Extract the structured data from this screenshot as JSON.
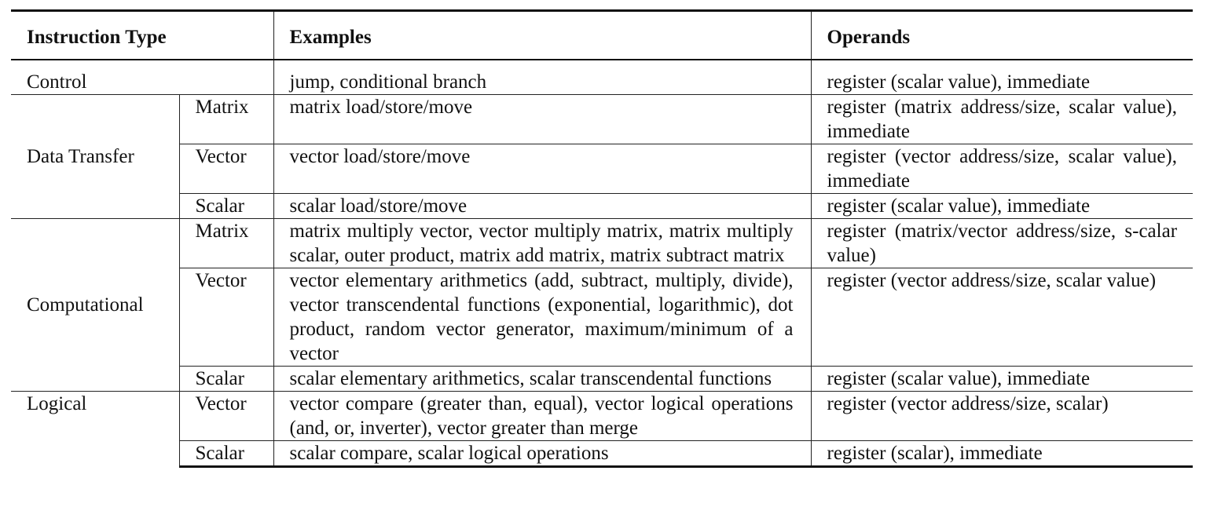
{
  "header": {
    "col1": "Instruction Type",
    "col2": "Examples",
    "col3": "Operands"
  },
  "rows": {
    "control": {
      "type": "Control",
      "examples": "jump, conditional branch",
      "operands": "register (scalar value), immediate"
    },
    "data_transfer": {
      "group": "Data Transfer",
      "matrix": {
        "sub": "Matrix",
        "examples": "matrix load/store/move",
        "operands": "register (matrix address/size, scalar value), immediate"
      },
      "vector": {
        "sub": "Vector",
        "examples": "vector load/store/move",
        "operands": "register (vector address/size, scalar value), immediate"
      },
      "scalar": {
        "sub": "Scalar",
        "examples": "scalar load/store/move",
        "operands": "register (scalar value), immediate"
      }
    },
    "computational": {
      "group": "Computational",
      "matrix": {
        "sub": "Matrix",
        "examples": "matrix multiply vector, vector multiply matrix, matrix multiply scalar, outer product, matrix add matrix, matrix subtract matrix",
        "operands": "register (matrix/vector address/size, s-calar value)"
      },
      "vector": {
        "sub": "Vector",
        "examples": "vector elementary arithmetics (add, subtract, multiply, divide), vector transcendental functions (exponential, logarithmic), dot product, random vector generator, maximum/minimum of a vector",
        "operands": "register (vector address/size, scalar value)"
      },
      "scalar": {
        "sub": "Scalar",
        "examples": "scalar elementary arithmetics, scalar transcendental functions",
        "operands": "register (scalar value), immediate"
      }
    },
    "logical": {
      "group": "Logical",
      "vector": {
        "sub": "Vector",
        "examples": "vector compare (greater than, equal), vector logical operations (and, or, inverter), vector greater than merge",
        "operands": "register (vector address/size, scalar)"
      },
      "scalar": {
        "sub": "Scalar",
        "examples": "scalar compare, scalar logical operations",
        "operands": "register (scalar), immediate"
      }
    }
  }
}
